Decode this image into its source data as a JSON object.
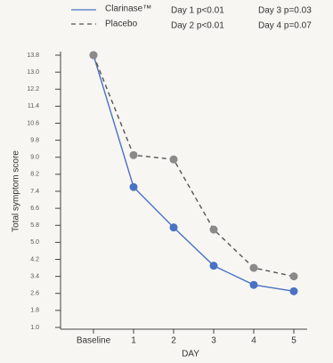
{
  "chart_data": {
    "type": "line",
    "annotations": [
      "Day 1 p<0.01",
      "Day 2 p<0.01",
      "Day 3 p=0.03",
      "Day 4 p=0.07"
    ],
    "x_label": "DAY",
    "y_label": "Total symptom score",
    "categories": [
      "Baseline",
      "1",
      "2",
      "3",
      "4",
      "5"
    ],
    "series": [
      {
        "name": "Clarinase™",
        "color": "#4a72c4",
        "dashed": false,
        "values": [
          13.8,
          7.6,
          5.7,
          3.9,
          3.0,
          2.7
        ]
      },
      {
        "name": "Placebo",
        "color": "#555555",
        "dashed": true,
        "marker_color": "#8a8a8a",
        "values": [
          13.8,
          9.1,
          8.9,
          5.6,
          3.8,
          3.4
        ]
      }
    ],
    "ylim": [
      1.0,
      13.8
    ],
    "yticks": [
      {
        "value": 1,
        "label": "1.0"
      },
      1.8,
      2.6,
      3.4,
      4.2,
      {
        "value": 5,
        "label": "5.0"
      },
      5.8,
      6.6,
      7.4,
      8.2,
      {
        "value": 9,
        "label": "9.0"
      },
      9.8,
      10.6,
      11.4,
      12.2,
      {
        "value": 13,
        "label": "13.0"
      },
      13.8
    ]
  }
}
